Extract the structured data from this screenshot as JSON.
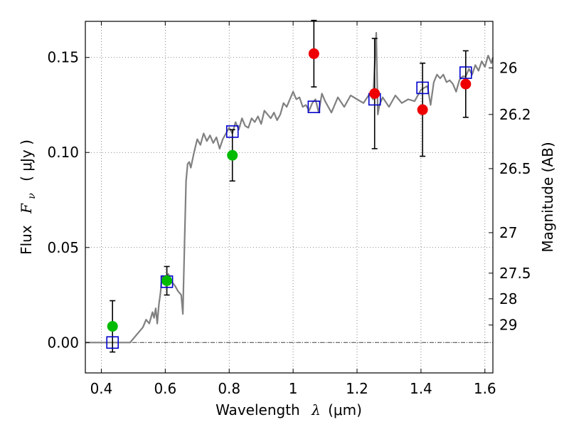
{
  "chart_data": {
    "type": "scatter",
    "xlabel": "Wavelength",
    "xlabel_math": "λ",
    "xlabel_unit": "(μm)",
    "ylabel": "Flux",
    "ylabel_math": "F",
    "ylabel_math_sub": "ν",
    "ylabel_unit": "( μJy )",
    "y2label": "Magnitude (AB)",
    "xlim": [
      0.35,
      1.625
    ],
    "ylim": [
      -0.016,
      0.169
    ],
    "grid": true,
    "x_ticks": [
      {
        "value": 0.4,
        "label": "0.4"
      },
      {
        "value": 0.6,
        "label": "0.6"
      },
      {
        "value": 0.8,
        "label": "0.8"
      },
      {
        "value": 1.0,
        "label": "1"
      },
      {
        "value": 1.2,
        "label": "1.2"
      },
      {
        "value": 1.4,
        "label": "1.4"
      },
      {
        "value": 1.6,
        "label": "1.6"
      }
    ],
    "y_ticks": [
      {
        "value": 0.0,
        "label": "0.00"
      },
      {
        "value": 0.05,
        "label": "0.05"
      },
      {
        "value": 0.1,
        "label": "0.10"
      },
      {
        "value": 0.15,
        "label": "0.15"
      }
    ],
    "y2_ticks": [
      {
        "flux": 0.1445,
        "label": "26"
      },
      {
        "flux": 0.12,
        "label": "26.2"
      },
      {
        "flux": 0.0915,
        "label": "26.5"
      },
      {
        "flux": 0.0578,
        "label": "27"
      },
      {
        "flux": 0.0365,
        "label": "27.5"
      },
      {
        "flux": 0.023,
        "label": "28"
      },
      {
        "flux": 0.0092,
        "label": "29"
      }
    ],
    "zero_line": 0.0,
    "series": [
      {
        "name": "model_sed",
        "style": "line",
        "color": "#808080",
        "x": [
          0.35,
          0.49,
          0.5,
          0.51,
          0.52,
          0.53,
          0.54,
          0.55,
          0.56,
          0.565,
          0.57,
          0.575,
          0.58,
          0.585,
          0.59,
          0.6,
          0.61,
          0.62,
          0.63,
          0.64,
          0.65,
          0.655,
          0.66,
          0.665,
          0.67,
          0.675,
          0.68,
          0.69,
          0.7,
          0.71,
          0.72,
          0.73,
          0.74,
          0.75,
          0.76,
          0.77,
          0.78,
          0.79,
          0.8,
          0.81,
          0.82,
          0.83,
          0.84,
          0.85,
          0.86,
          0.87,
          0.88,
          0.89,
          0.9,
          0.91,
          0.92,
          0.93,
          0.94,
          0.95,
          0.96,
          0.97,
          0.98,
          0.99,
          1.0,
          1.01,
          1.02,
          1.03,
          1.04,
          1.05,
          1.06,
          1.07,
          1.08,
          1.09,
          1.1,
          1.12,
          1.14,
          1.16,
          1.18,
          1.2,
          1.22,
          1.24,
          1.25,
          1.26,
          1.265,
          1.27,
          1.28,
          1.3,
          1.32,
          1.34,
          1.36,
          1.38,
          1.4,
          1.42,
          1.43,
          1.44,
          1.45,
          1.46,
          1.47,
          1.48,
          1.49,
          1.5,
          1.51,
          1.52,
          1.53,
          1.54,
          1.55,
          1.56,
          1.57,
          1.58,
          1.59,
          1.6,
          1.61,
          1.62,
          1.625
        ],
        "y": [
          0.0,
          0.0,
          0.002,
          0.004,
          0.006,
          0.008,
          0.012,
          0.01,
          0.016,
          0.013,
          0.018,
          0.01,
          0.02,
          0.026,
          0.035,
          0.033,
          0.036,
          0.032,
          0.03,
          0.027,
          0.025,
          0.015,
          0.05,
          0.085,
          0.094,
          0.095,
          0.092,
          0.1,
          0.107,
          0.104,
          0.11,
          0.106,
          0.109,
          0.105,
          0.108,
          0.102,
          0.107,
          0.11,
          0.113,
          0.11,
          0.116,
          0.112,
          0.118,
          0.114,
          0.113,
          0.118,
          0.116,
          0.119,
          0.115,
          0.122,
          0.12,
          0.118,
          0.121,
          0.117,
          0.12,
          0.126,
          0.124,
          0.128,
          0.132,
          0.128,
          0.129,
          0.124,
          0.125,
          0.122,
          0.126,
          0.128,
          0.121,
          0.131,
          0.127,
          0.121,
          0.129,
          0.124,
          0.13,
          0.128,
          0.126,
          0.131,
          0.128,
          0.163,
          0.12,
          0.125,
          0.129,
          0.124,
          0.13,
          0.126,
          0.128,
          0.127,
          0.133,
          0.135,
          0.125,
          0.137,
          0.141,
          0.139,
          0.141,
          0.137,
          0.138,
          0.136,
          0.132,
          0.138,
          0.14,
          0.14,
          0.144,
          0.141,
          0.146,
          0.143,
          0.148,
          0.145,
          0.151,
          0.147,
          0.15
        ]
      },
      {
        "name": "model_photometry",
        "style": "square",
        "color": "#0000cc",
        "x": [
          0.435,
          0.605,
          0.81,
          1.065,
          1.255,
          1.405,
          1.54
        ],
        "y": [
          0.0,
          0.032,
          0.111,
          0.124,
          0.128,
          0.134,
          0.142
        ]
      },
      {
        "name": "observed_optical",
        "style": "circle",
        "color": "#00bb00",
        "x": [
          0.435,
          0.605,
          0.81
        ],
        "y": [
          0.0085,
          0.0325,
          0.0985
        ],
        "err": [
          0.0135,
          0.0075,
          0.0135
        ]
      },
      {
        "name": "observed_nir",
        "style": "circle",
        "color": "#ee0000",
        "x": [
          1.065,
          1.255,
          1.405,
          1.54
        ],
        "y": [
          0.152,
          0.131,
          0.1225,
          0.136
        ],
        "err": [
          0.0175,
          0.029,
          0.0245,
          0.0175
        ]
      }
    ]
  }
}
